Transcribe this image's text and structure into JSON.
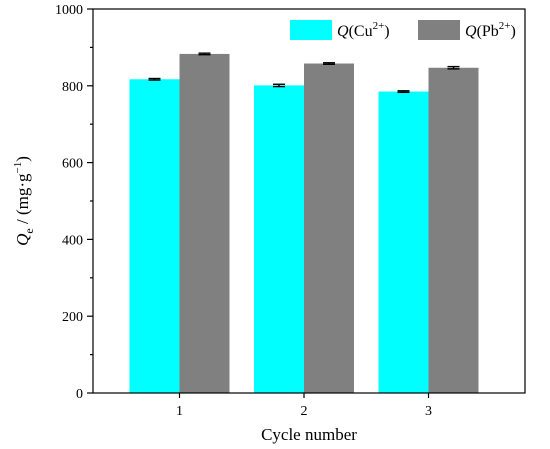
{
  "chart_data": {
    "type": "bar",
    "categories": [
      "1",
      "2",
      "3"
    ],
    "series": [
      {
        "name": "Q(Cu2+)",
        "legend": {
          "symbol": "Q",
          "open": "(Cu",
          "sup": "2+",
          "close": ")"
        },
        "color": "#00FFFF",
        "values": [
          817,
          801,
          785
        ],
        "errors": [
          2,
          3,
          2
        ]
      },
      {
        "name": "Q(Pb2+)",
        "legend": {
          "symbol": "Q",
          "open": "(Pb",
          "sup": "2+",
          "close": ")"
        },
        "color": "#808080",
        "values": [
          883,
          858,
          847
        ],
        "errors": [
          2,
          2,
          3
        ]
      }
    ],
    "xlabel": "Cycle number",
    "ylabel": {
      "symbol": "Q",
      "sub": "e",
      "rest": " / (mg·g",
      "sup": "−1",
      "close": ")"
    },
    "ylim": [
      0,
      1000
    ],
    "yticks": [
      "0",
      "200",
      "400",
      "600",
      "800",
      "1000"
    ],
    "grid": false,
    "legend_position": "top-right"
  }
}
